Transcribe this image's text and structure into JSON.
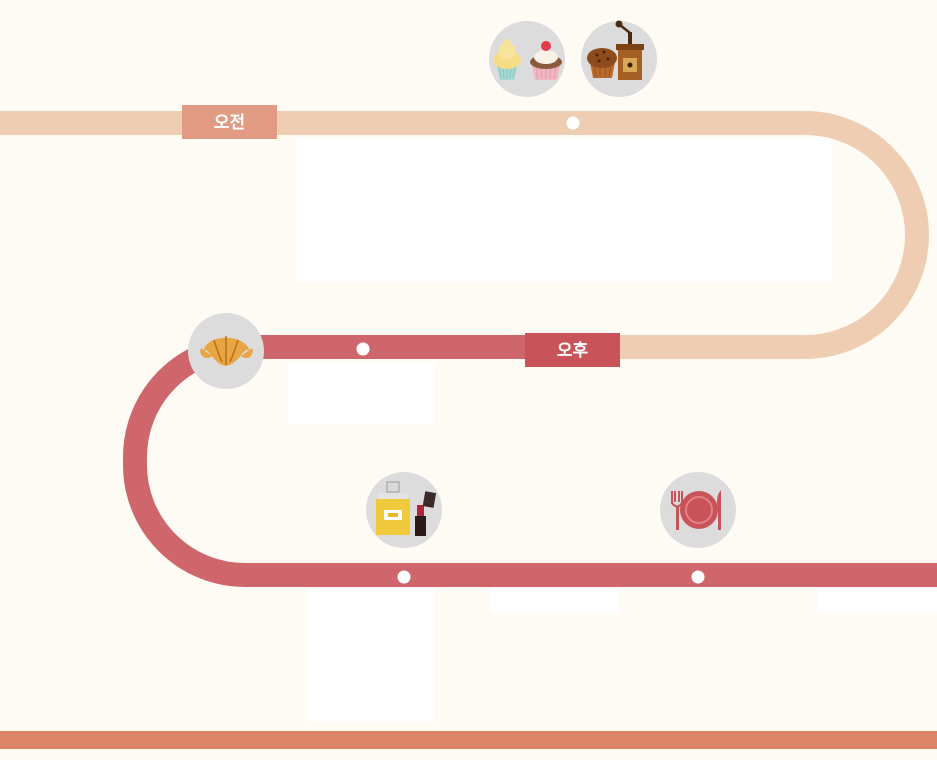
{
  "timeline": {
    "morning_label": "오전",
    "afternoon_label": "오후"
  },
  "colors": {
    "morning_track": "#efcdb2",
    "afternoon_track": "#cf666c",
    "morning_tag": "#e19b82",
    "afternoon_tag": "#c8545a",
    "icon_bg": "#dcdcdc",
    "footer": "#dd8567",
    "background": "#fefbf5"
  },
  "icons": [
    {
      "name": "cupcakes-icon"
    },
    {
      "name": "muffin-coffee-grinder-icon"
    },
    {
      "name": "croissant-icon"
    },
    {
      "name": "perfume-lipstick-icon"
    },
    {
      "name": "dinner-plate-icon"
    }
  ]
}
